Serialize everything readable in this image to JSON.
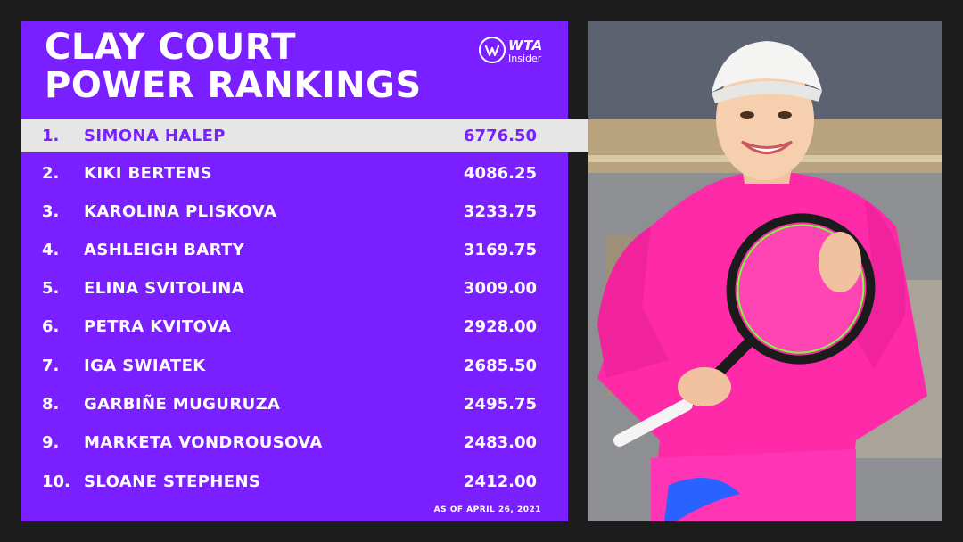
{
  "title_line1": "CLAY COURT",
  "title_line2": "POWER RANKINGS",
  "logo": {
    "wta": "WTA",
    "insider": "Insider"
  },
  "rankings": [
    {
      "rank": "1.",
      "name": "SIMONA HALEP",
      "points": "6776.50"
    },
    {
      "rank": "2.",
      "name": "KIKI BERTENS",
      "points": "4086.25"
    },
    {
      "rank": "3.",
      "name": "KAROLINA PLISKOVA",
      "points": "3233.75"
    },
    {
      "rank": "4.",
      "name": "ASHLEIGH BARTY",
      "points": "3169.75"
    },
    {
      "rank": "5.",
      "name": "ELINA SVITOLINA",
      "points": "3009.00"
    },
    {
      "rank": "6.",
      "name": "PETRA KVITOVA",
      "points": "2928.00"
    },
    {
      "rank": "7.",
      "name": "IGA SWIATEK",
      "points": "2685.50"
    },
    {
      "rank": "8.",
      "name": "GARBIÑE MUGURUZA",
      "points": "2495.75"
    },
    {
      "rank": "9.",
      "name": "MARKETA VONDROUSOVA",
      "points": "2483.00"
    },
    {
      "rank": "10.",
      "name": "SLOANE STEPHENS",
      "points": "2412.00"
    }
  ],
  "as_of": "AS OF APRIL 26, 2021",
  "colors": {
    "panel": "#7a1fff",
    "highlight": "#e6e6e6",
    "background": "#1c1c1c",
    "outfit": "#ff2aa8"
  },
  "photo": {
    "subject": "player-photo"
  }
}
